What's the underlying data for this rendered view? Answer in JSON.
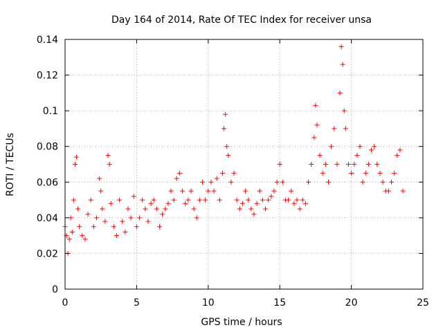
{
  "chart_data": {
    "type": "scatter",
    "title": "Day 164 of 2014, Rate Of TEC Index for receiver unsa",
    "xlabel": "GPS time / hours",
    "ylabel": "ROTI / TECUs",
    "xlim": [
      0,
      25
    ],
    "ylim": [
      0,
      0.14
    ],
    "x_ticks": [
      "0",
      "5",
      "10",
      "15",
      "20",
      "25"
    ],
    "y_ticks": [
      "0",
      "0.02",
      "0.04",
      "0.06",
      "0.08",
      "0.1",
      "0.12",
      "0.14"
    ],
    "grid": true,
    "marker": "+",
    "color": "#ff0000",
    "series": [
      {
        "name": "ROTI",
        "x": [
          0.0,
          0.1,
          0.2,
          0.3,
          0.4,
          0.5,
          0.6,
          0.7,
          0.8,
          0.9,
          1.0,
          1.2,
          1.4,
          1.6,
          1.8,
          2.0,
          2.2,
          2.4,
          2.5,
          2.6,
          2.8,
          3.0,
          3.1,
          3.2,
          3.4,
          3.6,
          3.8,
          4.0,
          4.2,
          4.4,
          4.6,
          4.8,
          5.0,
          5.2,
          5.4,
          5.6,
          5.8,
          6.0,
          6.2,
          6.4,
          6.6,
          6.8,
          7.0,
          7.2,
          7.4,
          7.6,
          7.8,
          8.0,
          8.2,
          8.4,
          8.6,
          8.8,
          9.0,
          9.2,
          9.4,
          9.6,
          9.8,
          10.0,
          10.2,
          10.4,
          10.6,
          10.8,
          11.0,
          11.1,
          11.2,
          11.3,
          11.4,
          11.6,
          11.8,
          12.0,
          12.2,
          12.4,
          12.6,
          12.8,
          13.0,
          13.2,
          13.4,
          13.6,
          13.8,
          14.0,
          14.2,
          14.4,
          14.6,
          14.8,
          15.0,
          15.2,
          15.4,
          15.6,
          15.8,
          16.0,
          16.2,
          16.4,
          16.6,
          16.8,
          17.0,
          17.2,
          17.4,
          17.5,
          17.6,
          17.8,
          18.0,
          18.2,
          18.4,
          18.6,
          18.8,
          19.0,
          19.2,
          19.3,
          19.4,
          19.5,
          19.6,
          19.8,
          20.0,
          20.2,
          20.4,
          20.6,
          20.8,
          21.0,
          21.2,
          21.4,
          21.6,
          21.8,
          22.0,
          22.2,
          22.4,
          22.6,
          22.8,
          23.0,
          23.2,
          23.4,
          23.6
        ],
        "y": [
          0.035,
          0.03,
          0.02,
          0.028,
          0.04,
          0.032,
          0.05,
          0.07,
          0.074,
          0.045,
          0.035,
          0.03,
          0.028,
          0.042,
          0.05,
          0.035,
          0.04,
          0.062,
          0.055,
          0.045,
          0.038,
          0.075,
          0.07,
          0.048,
          0.035,
          0.03,
          0.05,
          0.038,
          0.032,
          0.045,
          0.04,
          0.052,
          0.035,
          0.04,
          0.05,
          0.045,
          0.038,
          0.048,
          0.05,
          0.045,
          0.035,
          0.042,
          0.045,
          0.048,
          0.055,
          0.05,
          0.062,
          0.065,
          0.055,
          0.048,
          0.05,
          0.055,
          0.045,
          0.04,
          0.05,
          0.06,
          0.05,
          0.055,
          0.06,
          0.055,
          0.062,
          0.05,
          0.065,
          0.09,
          0.098,
          0.08,
          0.075,
          0.06,
          0.065,
          0.05,
          0.045,
          0.048,
          0.055,
          0.05,
          0.045,
          0.042,
          0.048,
          0.055,
          0.05,
          0.045,
          0.05,
          0.052,
          0.055,
          0.06,
          0.07,
          0.06,
          0.05,
          0.05,
          0.055,
          0.048,
          0.05,
          0.045,
          0.05,
          0.048,
          0.06,
          0.07,
          0.085,
          0.103,
          0.092,
          0.075,
          0.065,
          0.07,
          0.06,
          0.08,
          0.09,
          0.07,
          0.11,
          0.136,
          0.126,
          0.1,
          0.09,
          0.07,
          0.065,
          0.07,
          0.075,
          0.08,
          0.06,
          0.065,
          0.07,
          0.078,
          0.08,
          0.07,
          0.065,
          0.06,
          0.055,
          0.055,
          0.06,
          0.065,
          0.075,
          0.078,
          0.055
        ]
      }
    ]
  }
}
